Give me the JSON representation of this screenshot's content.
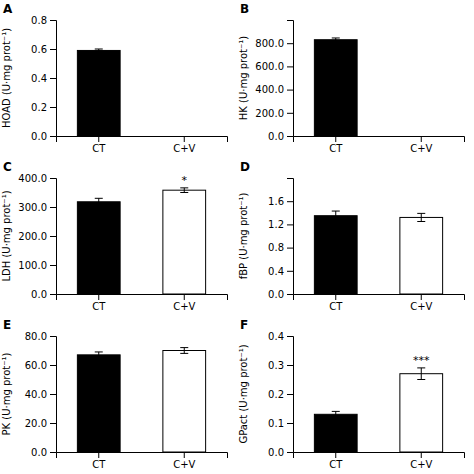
{
  "chart_data": [
    {
      "type": "bar",
      "title": "A",
      "y_label": "HOAD (U·mg prot⁻¹)",
      "categories": [
        "CT",
        "C+V"
      ],
      "values": [
        0.59,
        null
      ],
      "errors": [
        0.01,
        null
      ],
      "colors": [
        "black",
        null
      ],
      "ylim": [
        0.0,
        0.8
      ],
      "yticks": [
        {
          "value": 0,
          "label": "0.0"
        },
        0.2,
        0.4,
        0.6,
        0.8
      ]
    },
    {
      "type": "bar",
      "title": "B",
      "y_label": "HK (U·mg prot⁻¹)",
      "categories": [
        "CT",
        "C+V"
      ],
      "values": [
        830.0,
        null
      ],
      "errors": [
        15.0,
        null
      ],
      "colors": [
        "black",
        null
      ],
      "ylim": [
        0.0,
        1000.0
      ],
      "yticks": [
        {
          "value": 0,
          "label": "0.0"
        },
        {
          "value": 200,
          "label": "200.0"
        },
        {
          "value": 400,
          "label": "400.0"
        },
        {
          "value": 600,
          "label": "600.0"
        },
        {
          "value": 800,
          "label": "800.0"
        }
      ]
    },
    {
      "type": "bar",
      "title": "C",
      "y_label": "LDH (U·mg prot⁻¹)",
      "categories": [
        "CT",
        "C+V"
      ],
      "values": [
        318.0,
        358.0
      ],
      "errors": [
        12.0,
        8.0
      ],
      "colors": [
        "black",
        "white"
      ],
      "ylim": [
        0.0,
        400.0
      ],
      "yticks": [
        {
          "value": 0,
          "label": "0.0"
        },
        {
          "value": 100,
          "label": "100.0"
        },
        {
          "value": 200,
          "label": "200.0"
        },
        {
          "value": 300,
          "label": "300.0"
        },
        {
          "value": 400,
          "label": "400.0"
        }
      ],
      "annotations": [
        {
          "text": "*",
          "x": "C+V"
        }
      ]
    },
    {
      "type": "bar",
      "title": "D",
      "y_label": "fBP (U·mg prot⁻¹)",
      "categories": [
        "CT",
        "C+V"
      ],
      "values": [
        1.35,
        1.32
      ],
      "errors": [
        0.08,
        0.07
      ],
      "colors": [
        "black",
        "white"
      ],
      "ylim": [
        0.0,
        2.0
      ],
      "yticks": [
        {
          "value": 0,
          "label": "0.0"
        },
        0.4,
        0.8,
        1.2,
        1.6
      ]
    },
    {
      "type": "bar",
      "title": "E",
      "y_label": "PK (U·mg prot⁻¹)",
      "categories": [
        "CT",
        "C+V"
      ],
      "values": [
        67.0,
        70.0
      ],
      "errors": [
        2.0,
        2.0
      ],
      "colors": [
        "black",
        "white"
      ],
      "ylim": [
        0.0,
        80.0
      ],
      "yticks": [
        {
          "value": 0,
          "label": "0.0"
        },
        {
          "value": 20,
          "label": "20.0"
        },
        {
          "value": 40,
          "label": "40.0"
        },
        {
          "value": 60,
          "label": "60.0"
        },
        {
          "value": 80,
          "label": "80.0"
        }
      ]
    },
    {
      "type": "bar",
      "title": "F",
      "y_label": "GPact (U·mg prot⁻¹)",
      "categories": [
        "CT",
        "C+V"
      ],
      "values": [
        0.13,
        0.27
      ],
      "errors": [
        0.01,
        0.02
      ],
      "colors": [
        "black",
        "white"
      ],
      "ylim": [
        0.0,
        0.4
      ],
      "yticks": [
        {
          "value": 0,
          "label": "0.0"
        },
        0.1,
        0.2,
        0.3,
        0.4
      ],
      "annotations": [
        {
          "text": "***",
          "x": "C+V"
        }
      ]
    }
  ]
}
